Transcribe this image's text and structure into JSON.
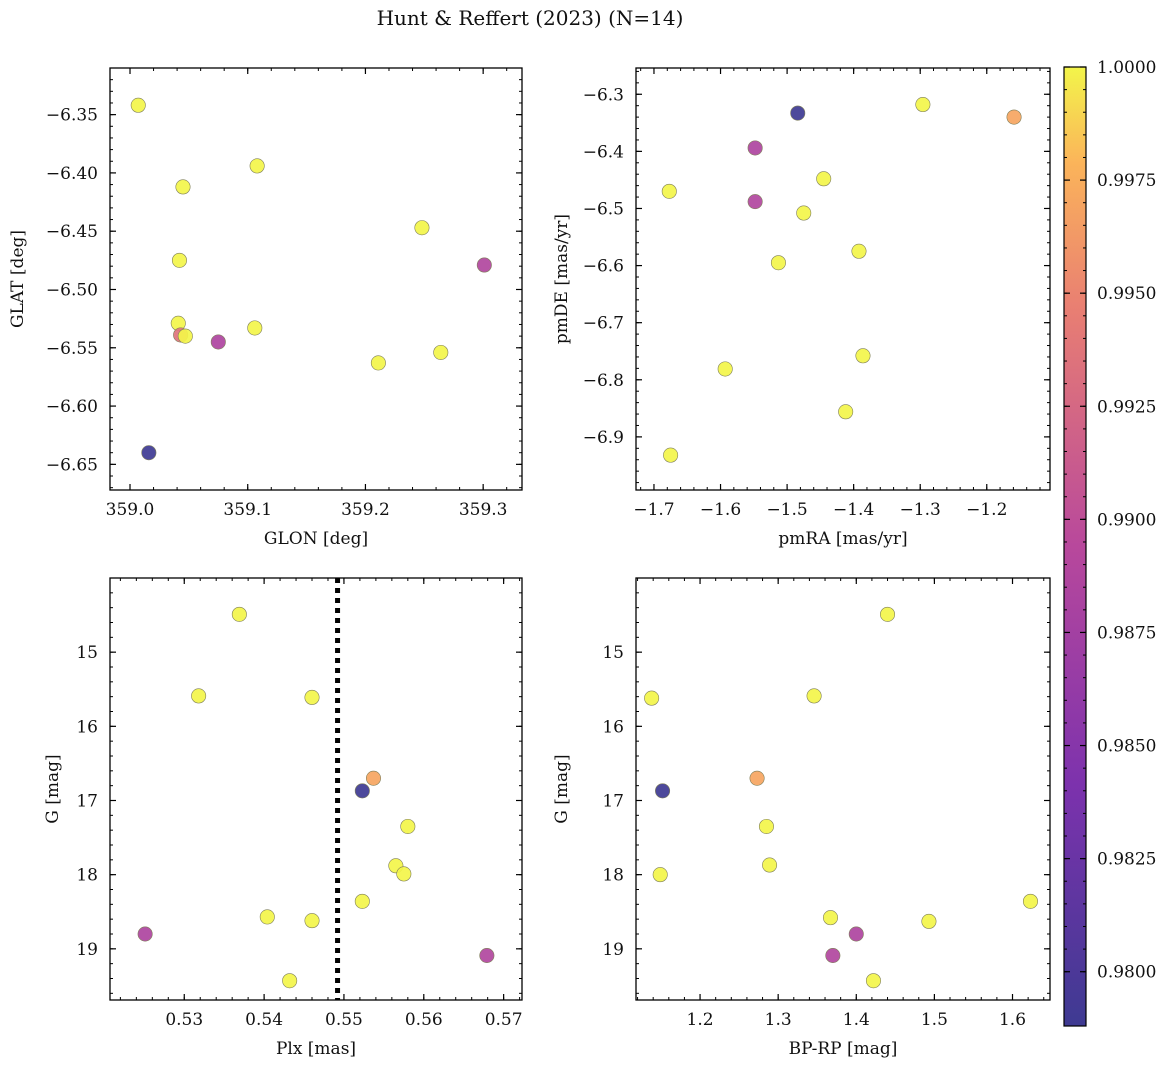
{
  "figure": {
    "title": "Hunt & Reffert (2023) (N=14)"
  },
  "colorbar": {
    "colormap": "plasma",
    "min": 0.9788,
    "max": 1.0,
    "ticks": [
      0.98,
      0.9825,
      0.985,
      0.9875,
      0.99,
      0.9925,
      0.995,
      0.9975,
      1.0
    ],
    "tick_labels": [
      "0.9800",
      "0.9825",
      "0.9850",
      "0.9875",
      "0.9900",
      "0.9925",
      "0.9950",
      "0.9975",
      "1.0000"
    ]
  },
  "chart_data": [
    {
      "type": "scatter",
      "id": "glon-glat",
      "title": "",
      "xlabel": "GLON [deg]",
      "ylabel": "GLAT [deg]",
      "xlim": [
        358.983,
        359.333
      ],
      "ylim": [
        -6.672,
        -6.31
      ],
      "y_inverted": false,
      "xticks": [
        359.0,
        359.1,
        359.2,
        359.3
      ],
      "xtick_labels": [
        "359.0",
        "359.1",
        "359.2",
        "359.3"
      ],
      "yticks": [
        -6.35,
        -6.4,
        -6.45,
        -6.5,
        -6.55,
        -6.6,
        -6.65
      ],
      "ytick_labels": [
        "−6.35",
        "−6.40",
        "−6.45",
        "−6.50",
        "−6.55",
        "−6.60",
        "−6.65"
      ],
      "points": [
        {
          "x": 359.007,
          "y": -6.342,
          "c": 1.0
        },
        {
          "x": 359.108,
          "y": -6.394,
          "c": 1.0
        },
        {
          "x": 359.045,
          "y": -6.412,
          "c": 1.0
        },
        {
          "x": 359.248,
          "y": -6.447,
          "c": 1.0
        },
        {
          "x": 359.042,
          "y": -6.475,
          "c": 1.0
        },
        {
          "x": 359.301,
          "y": -6.479,
          "c": 0.9888
        },
        {
          "x": 359.041,
          "y": -6.529,
          "c": 1.0
        },
        {
          "x": 359.106,
          "y": -6.533,
          "c": 1.0
        },
        {
          "x": 359.043,
          "y": -6.539,
          "c": 0.9935
        },
        {
          "x": 359.047,
          "y": -6.54,
          "c": 1.0
        },
        {
          "x": 359.075,
          "y": -6.545,
          "c": 0.9885
        },
        {
          "x": 359.264,
          "y": -6.554,
          "c": 1.0
        },
        {
          "x": 359.211,
          "y": -6.563,
          "c": 1.0
        },
        {
          "x": 359.016,
          "y": -6.64,
          "c": 0.9788
        }
      ]
    },
    {
      "type": "scatter",
      "id": "pmra-pmde",
      "title": "",
      "xlabel": "pmRA [mas/yr]",
      "ylabel": "pmDE [mas/yr]",
      "xlim": [
        -1.727,
        -1.105
      ],
      "ylim": [
        -6.993,
        -6.254
      ],
      "y_inverted": false,
      "xticks": [
        -1.7,
        -1.6,
        -1.5,
        -1.4,
        -1.3,
        -1.2
      ],
      "xtick_labels": [
        "−1.7",
        "−1.6",
        "−1.5",
        "−1.4",
        "−1.3",
        "−1.2"
      ],
      "yticks": [
        -6.3,
        -6.4,
        -6.5,
        -6.6,
        -6.7,
        -6.8,
        -6.9
      ],
      "ytick_labels": [
        "−6.3",
        "−6.4",
        "−6.5",
        "−6.6",
        "−6.7",
        "−6.8",
        "−6.9"
      ],
      "points": [
        {
          "x": -1.296,
          "y": -6.318,
          "c": 1.0
        },
        {
          "x": -1.159,
          "y": -6.34,
          "c": 0.997
        },
        {
          "x": -1.484,
          "y": -6.333,
          "c": 0.9788
        },
        {
          "x": -1.548,
          "y": -6.394,
          "c": 0.9885
        },
        {
          "x": -1.445,
          "y": -6.448,
          "c": 1.0
        },
        {
          "x": -1.677,
          "y": -6.47,
          "c": 1.0
        },
        {
          "x": -1.548,
          "y": -6.488,
          "c": 0.9888
        },
        {
          "x": -1.475,
          "y": -6.508,
          "c": 1.0
        },
        {
          "x": -1.392,
          "y": -6.575,
          "c": 1.0
        },
        {
          "x": -1.513,
          "y": -6.595,
          "c": 1.0
        },
        {
          "x": -1.386,
          "y": -6.758,
          "c": 1.0
        },
        {
          "x": -1.593,
          "y": -6.781,
          "c": 1.0
        },
        {
          "x": -1.412,
          "y": -6.856,
          "c": 1.0
        },
        {
          "x": -1.675,
          "y": -6.932,
          "c": 1.0
        }
      ]
    },
    {
      "type": "scatter",
      "id": "plx-g",
      "title": "",
      "xlabel": "Plx [mas]",
      "ylabel": "G [mag]",
      "xlim": [
        0.5207,
        0.5723
      ],
      "ylim": [
        19.69,
        14.0
      ],
      "y_inverted": true,
      "xticks": [
        0.53,
        0.54,
        0.55,
        0.56,
        0.57
      ],
      "xtick_labels": [
        "0.53",
        "0.54",
        "0.55",
        "0.56",
        "0.57"
      ],
      "yticks": [
        15,
        16,
        17,
        18,
        19
      ],
      "ytick_labels": [
        "15",
        "16",
        "17",
        "18",
        "19"
      ],
      "vline": 0.5492,
      "points": [
        {
          "x": 0.5369,
          "y": 14.49,
          "c": 1.0
        },
        {
          "x": 0.5318,
          "y": 15.59,
          "c": 1.0
        },
        {
          "x": 0.546,
          "y": 15.61,
          "c": 1.0
        },
        {
          "x": 0.5537,
          "y": 16.7,
          "c": 0.997
        },
        {
          "x": 0.5523,
          "y": 16.87,
          "c": 0.9788
        },
        {
          "x": 0.558,
          "y": 17.35,
          "c": 1.0
        },
        {
          "x": 0.5565,
          "y": 17.88,
          "c": 1.0
        },
        {
          "x": 0.5575,
          "y": 17.99,
          "c": 1.0
        },
        {
          "x": 0.5523,
          "y": 18.36,
          "c": 1.0
        },
        {
          "x": 0.5404,
          "y": 18.57,
          "c": 1.0
        },
        {
          "x": 0.546,
          "y": 18.62,
          "c": 1.0
        },
        {
          "x": 0.5251,
          "y": 18.8,
          "c": 0.9885
        },
        {
          "x": 0.5679,
          "y": 19.09,
          "c": 0.9888
        },
        {
          "x": 0.5432,
          "y": 19.43,
          "c": 1.0
        }
      ]
    },
    {
      "type": "scatter",
      "id": "bprp-g",
      "title": "",
      "xlabel": "BP-RP [mag]",
      "ylabel": "G [mag]",
      "xlim": [
        1.118,
        1.648
      ],
      "ylim": [
        19.69,
        14.0
      ],
      "y_inverted": true,
      "xticks": [
        1.2,
        1.3,
        1.4,
        1.5,
        1.6
      ],
      "xtick_labels": [
        "1.2",
        "1.3",
        "1.4",
        "1.5",
        "1.6"
      ],
      "yticks": [
        15,
        16,
        17,
        18,
        19
      ],
      "ytick_labels": [
        "15",
        "16",
        "17",
        "18",
        "19"
      ],
      "points": [
        {
          "x": 1.44,
          "y": 14.49,
          "c": 1.0
        },
        {
          "x": 1.138,
          "y": 15.62,
          "c": 1.0
        },
        {
          "x": 1.346,
          "y": 15.59,
          "c": 1.0
        },
        {
          "x": 1.273,
          "y": 16.7,
          "c": 0.997
        },
        {
          "x": 1.152,
          "y": 16.87,
          "c": 0.9788
        },
        {
          "x": 1.285,
          "y": 17.35,
          "c": 1.0
        },
        {
          "x": 1.289,
          "y": 17.87,
          "c": 1.0
        },
        {
          "x": 1.149,
          "y": 18.0,
          "c": 1.0
        },
        {
          "x": 1.623,
          "y": 18.36,
          "c": 1.0
        },
        {
          "x": 1.367,
          "y": 18.58,
          "c": 1.0
        },
        {
          "x": 1.493,
          "y": 18.63,
          "c": 1.0
        },
        {
          "x": 1.4,
          "y": 18.8,
          "c": 0.9885
        },
        {
          "x": 1.37,
          "y": 19.09,
          "c": 0.9888
        },
        {
          "x": 1.422,
          "y": 19.43,
          "c": 1.0
        }
      ]
    }
  ]
}
